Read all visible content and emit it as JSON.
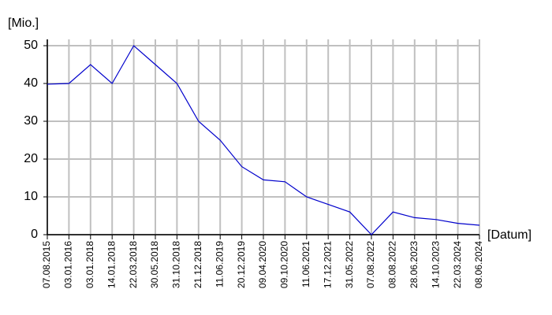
{
  "chart_data": {
    "type": "line",
    "y_label": "[Mio.]",
    "x_label": "[Datum]",
    "categories": [
      "07.08.2015",
      "03.01.2016",
      "03.01.2018",
      "14.01.2018",
      "22.03.2018",
      "30.05.2018",
      "31.10.2018",
      "21.12.2018",
      "11.06.2019",
      "20.12.2019",
      "09.04.2020",
      "09.10.2020",
      "11.06.2021",
      "17.12.2021",
      "31.05.2022",
      "07.08.2022",
      "08.08.2022",
      "28.06.2023",
      "14.10.2023",
      "22.03.2024",
      "08.06.2024"
    ],
    "series": [
      {
        "color": "#0000cc",
        "values": [
          39.8,
          40,
          45,
          40,
          50,
          45,
          40,
          30,
          25,
          18,
          14.5,
          14,
          10,
          8,
          6,
          0,
          6,
          4.5,
          4,
          3,
          2.5
        ]
      }
    ],
    "ylim": [
      0,
      50
    ],
    "yticks": [
      0,
      10,
      20,
      30,
      40,
      50
    ],
    "grid": true
  }
}
